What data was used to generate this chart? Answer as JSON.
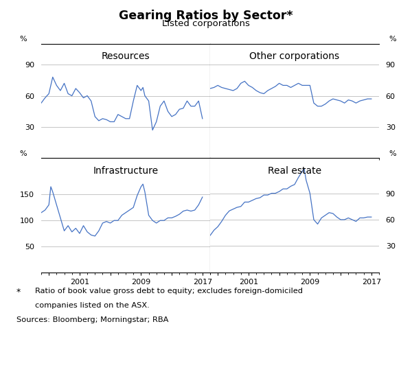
{
  "title": "Gearing Ratios by Sector*",
  "subtitle": "Listed corporations",
  "line_color": "#4472C4",
  "background_color": "#ffffff",
  "panels": [
    {
      "title": "Resources",
      "ylim": [
        0,
        110
      ],
      "yticks": [
        30,
        60,
        90
      ],
      "side": "left",
      "data_x": [
        1996.0,
        1996.5,
        1997.0,
        1997.5,
        1998.0,
        1998.5,
        1999.0,
        1999.5,
        2000.0,
        2000.5,
        2001.0,
        2001.5,
        2002.0,
        2002.5,
        2003.0,
        2003.5,
        2004.0,
        2004.5,
        2005.0,
        2005.5,
        2006.0,
        2006.5,
        2007.0,
        2007.5,
        2008.0,
        2008.5,
        2009.0,
        2009.25,
        2009.5,
        2010.0,
        2010.5,
        2011.0,
        2011.5,
        2012.0,
        2012.5,
        2013.0,
        2013.5,
        2014.0,
        2014.5,
        2015.0,
        2015.5,
        2016.0,
        2016.5,
        2017.0
      ],
      "data_y": [
        53,
        58,
        62,
        78,
        70,
        65,
        72,
        62,
        60,
        67,
        63,
        58,
        60,
        55,
        40,
        36,
        38,
        37,
        35,
        35,
        42,
        40,
        38,
        38,
        55,
        70,
        65,
        68,
        60,
        55,
        27,
        35,
        50,
        55,
        45,
        40,
        42,
        47,
        48,
        55,
        50,
        50,
        55,
        38
      ]
    },
    {
      "title": "Other corporations",
      "ylim": [
        0,
        110
      ],
      "yticks": [
        30,
        60,
        90
      ],
      "side": "right",
      "data_x": [
        1996.0,
        1996.5,
        1997.0,
        1997.5,
        1998.0,
        1998.5,
        1999.0,
        1999.5,
        2000.0,
        2000.5,
        2001.0,
        2001.5,
        2002.0,
        2002.5,
        2003.0,
        2003.5,
        2004.0,
        2004.5,
        2005.0,
        2005.5,
        2006.0,
        2006.5,
        2007.0,
        2007.5,
        2008.0,
        2008.5,
        2009.0,
        2009.5,
        2010.0,
        2010.5,
        2011.0,
        2011.5,
        2012.0,
        2012.5,
        2013.0,
        2013.5,
        2014.0,
        2014.5,
        2015.0,
        2015.5,
        2016.0,
        2016.5,
        2017.0
      ],
      "data_y": [
        67,
        68,
        70,
        68,
        67,
        66,
        65,
        67,
        72,
        74,
        70,
        68,
        65,
        63,
        62,
        65,
        67,
        69,
        72,
        70,
        70,
        68,
        70,
        72,
        70,
        70,
        70,
        53,
        50,
        50,
        52,
        55,
        57,
        56,
        55,
        53,
        56,
        55,
        53,
        55,
        56,
        57,
        57
      ]
    },
    {
      "title": "Infrastructure",
      "ylim": [
        0,
        220
      ],
      "yticks": [
        50,
        100,
        150
      ],
      "side": "left",
      "data_x": [
        1996.0,
        1996.5,
        1997.0,
        1997.25,
        1997.5,
        1998.0,
        1998.5,
        1999.0,
        1999.5,
        2000.0,
        2000.5,
        2001.0,
        2001.5,
        2002.0,
        2002.5,
        2003.0,
        2003.5,
        2004.0,
        2004.5,
        2005.0,
        2005.5,
        2006.0,
        2006.5,
        2007.0,
        2007.5,
        2008.0,
        2008.5,
        2009.0,
        2009.25,
        2009.5,
        2010.0,
        2010.5,
        2011.0,
        2011.5,
        2012.0,
        2012.5,
        2013.0,
        2013.5,
        2014.0,
        2014.5,
        2015.0,
        2015.5,
        2016.0,
        2016.5,
        2017.0
      ],
      "data_y": [
        115,
        120,
        130,
        165,
        155,
        130,
        105,
        80,
        90,
        78,
        85,
        75,
        90,
        78,
        72,
        70,
        80,
        95,
        98,
        95,
        100,
        100,
        110,
        115,
        120,
        125,
        148,
        165,
        170,
        155,
        110,
        100,
        95,
        100,
        100,
        105,
        105,
        108,
        112,
        118,
        120,
        118,
        120,
        130,
        145
      ]
    },
    {
      "title": "Real estate",
      "ylim": [
        0,
        130
      ],
      "yticks": [
        30,
        60,
        90
      ],
      "side": "right",
      "data_x": [
        1996.0,
        1996.5,
        1997.0,
        1997.5,
        1998.0,
        1998.5,
        1999.0,
        1999.5,
        2000.0,
        2000.5,
        2001.0,
        2001.5,
        2002.0,
        2002.5,
        2003.0,
        2003.5,
        2004.0,
        2004.5,
        2005.0,
        2005.5,
        2006.0,
        2006.5,
        2007.0,
        2007.5,
        2008.0,
        2008.25,
        2008.5,
        2009.0,
        2009.25,
        2009.5,
        2010.0,
        2010.5,
        2011.0,
        2011.5,
        2012.0,
        2012.5,
        2013.0,
        2013.5,
        2014.0,
        2014.5,
        2015.0,
        2015.5,
        2016.0,
        2016.5,
        2017.0
      ],
      "data_y": [
        42,
        48,
        52,
        58,
        65,
        70,
        72,
        74,
        75,
        80,
        80,
        82,
        84,
        85,
        88,
        88,
        90,
        90,
        92,
        95,
        95,
        98,
        100,
        108,
        115,
        118,
        105,
        90,
        75,
        60,
        55,
        62,
        65,
        68,
        67,
        63,
        60,
        60,
        62,
        60,
        58,
        62,
        62,
        63,
        63
      ]
    }
  ],
  "xlim": [
    1996,
    2018
  ],
  "xticks": [
    1997,
    2001,
    2005,
    2009,
    2013,
    2017
  ],
  "xticklabels": [
    "",
    "2001",
    "",
    "2009",
    "",
    "2017"
  ]
}
